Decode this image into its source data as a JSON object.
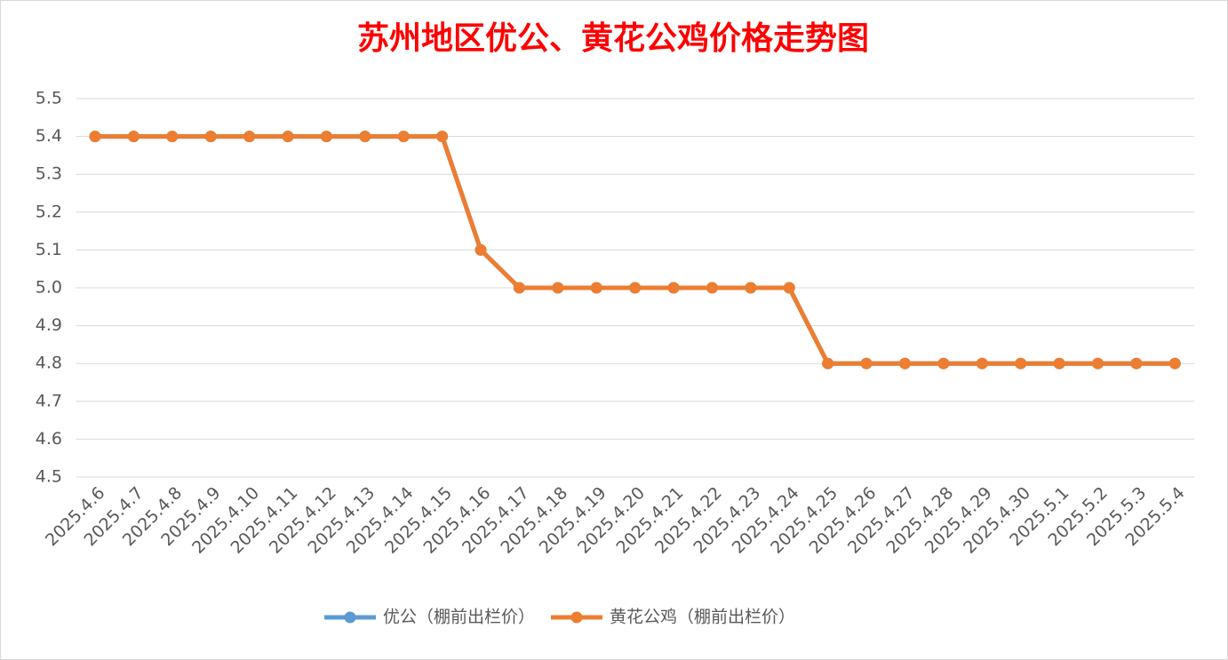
{
  "chart_data": {
    "type": "line",
    "title": "苏州地区优公、黄花公鸡价格走势图",
    "categories": [
      "2025.4.6",
      "2025.4.7",
      "2025.4.8",
      "2025.4.9",
      "2025.4.10",
      "2025.4.11",
      "2025.4.12",
      "2025.4.13",
      "2025.4.14",
      "2025.4.15",
      "2025.4.16",
      "2025.4.17",
      "2025.4.18",
      "2025.4.19",
      "2025.4.20",
      "2025.4.21",
      "2025.4.22",
      "2025.4.23",
      "2025.4.24",
      "2025.4.25",
      "2025.4.26",
      "2025.4.27",
      "2025.4.28",
      "2025.4.29",
      "2025.4.30",
      "2025.5.1",
      "2025.5.2",
      "2025.5.3",
      "2025.5.4"
    ],
    "series": [
      {
        "name": "优公（棚前出栏价）",
        "color": "#5b9bd5",
        "values": [
          5.4,
          5.4,
          5.4,
          5.4,
          5.4,
          5.4,
          5.4,
          5.4,
          5.4,
          5.4,
          5.1,
          5.0,
          5.0,
          5.0,
          5.0,
          5.0,
          5.0,
          5.0,
          5.0,
          4.8,
          4.8,
          4.8,
          4.8,
          4.8,
          4.8,
          4.8,
          4.8,
          4.8,
          4.8
        ]
      },
      {
        "name": "黄花公鸡（棚前出栏价）",
        "color": "#ed7d31",
        "values": [
          5.4,
          5.4,
          5.4,
          5.4,
          5.4,
          5.4,
          5.4,
          5.4,
          5.4,
          5.4,
          5.1,
          5.0,
          5.0,
          5.0,
          5.0,
          5.0,
          5.0,
          5.0,
          5.0,
          4.8,
          4.8,
          4.8,
          4.8,
          4.8,
          4.8,
          4.8,
          4.8,
          4.8,
          4.8
        ]
      }
    ],
    "ylim": [
      4.5,
      5.5
    ],
    "yticks": [
      4.5,
      4.6,
      4.7,
      4.8,
      4.9,
      {
        "value": 5,
        "label": "5.0"
      },
      5.1,
      5.2,
      5.3,
      5.4,
      5.5
    ],
    "grid": true,
    "legend": "bottom"
  }
}
